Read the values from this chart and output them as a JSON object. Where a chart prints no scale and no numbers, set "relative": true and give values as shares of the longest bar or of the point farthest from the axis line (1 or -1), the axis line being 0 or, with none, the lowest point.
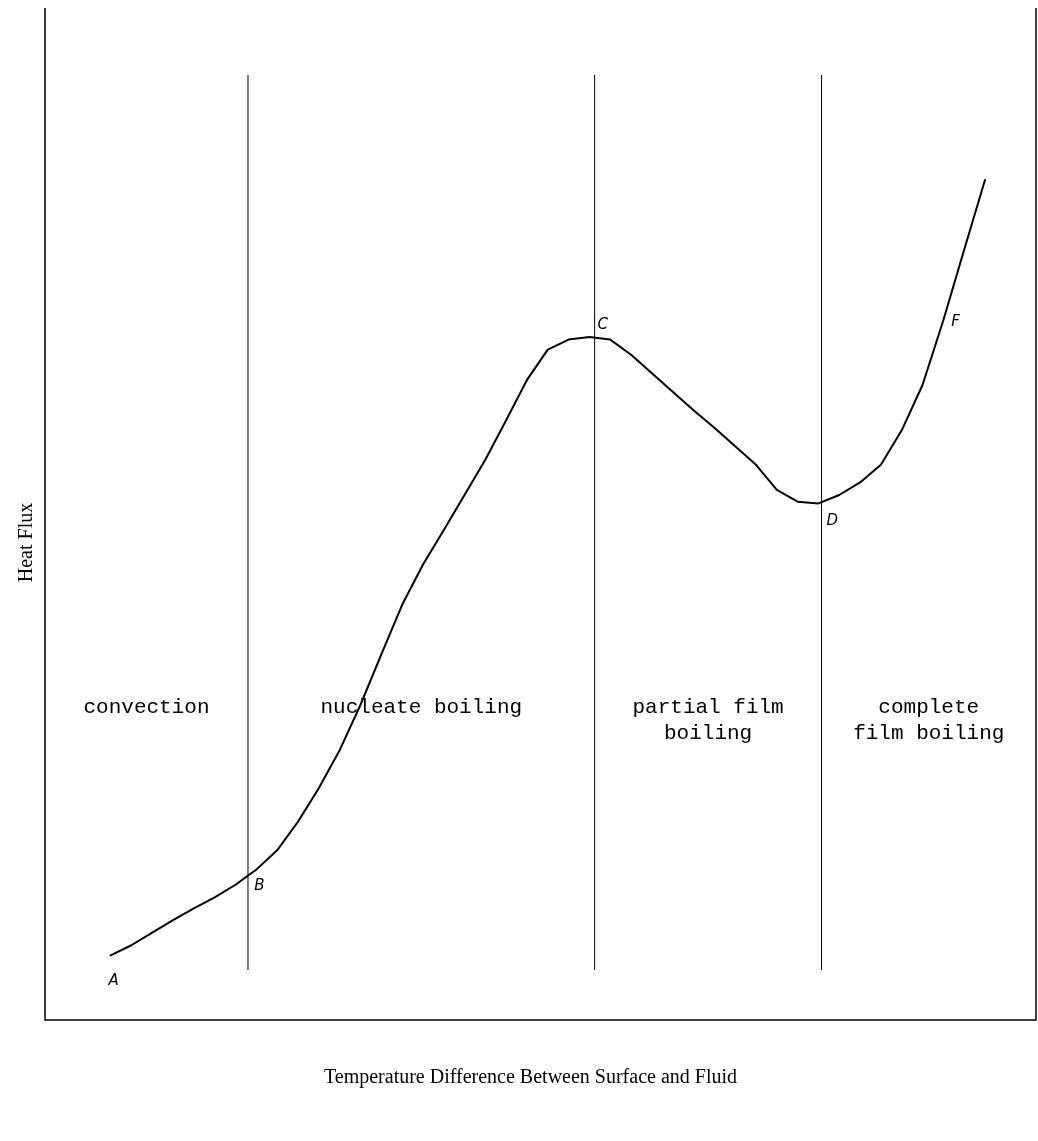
{
  "chart_data": {
    "type": "line",
    "relative": true,
    "xlabel": "Temperature Difference Between Surface and Fluid",
    "ylabel": "Heat Flux",
    "color": "#000000",
    "categories": [
      null,
      null,
      null,
      null,
      null,
      null,
      null,
      null,
      null,
      null,
      null,
      null,
      null,
      null,
      null,
      null,
      null,
      null,
      null,
      null,
      null,
      null,
      null,
      null,
      null,
      null,
      null,
      null,
      null,
      null,
      null,
      null,
      null,
      null,
      null,
      null,
      null,
      null,
      null,
      null,
      null,
      null,
      null
    ],
    "values": [
      0.077,
      0.089,
      0.104,
      0.119,
      0.133,
      0.146,
      0.161,
      0.179,
      0.202,
      0.236,
      0.276,
      0.321,
      0.375,
      0.435,
      0.494,
      0.542,
      0.583,
      0.625,
      0.667,
      0.714,
      0.762,
      0.798,
      0.81,
      0.813,
      0.81,
      0.792,
      0.77,
      0.748,
      0.726,
      0.705,
      0.683,
      0.661,
      0.631,
      0.617,
      0.615,
      0.625,
      0.64,
      0.661,
      0.702,
      0.756,
      0.833,
      0.917,
      1
    ],
    "annotations": [
      "convection",
      "nucleate boiling",
      "partial film boiling",
      "complete film boiling",
      "A",
      "B",
      "C",
      "D",
      "F"
    ]
  }
}
